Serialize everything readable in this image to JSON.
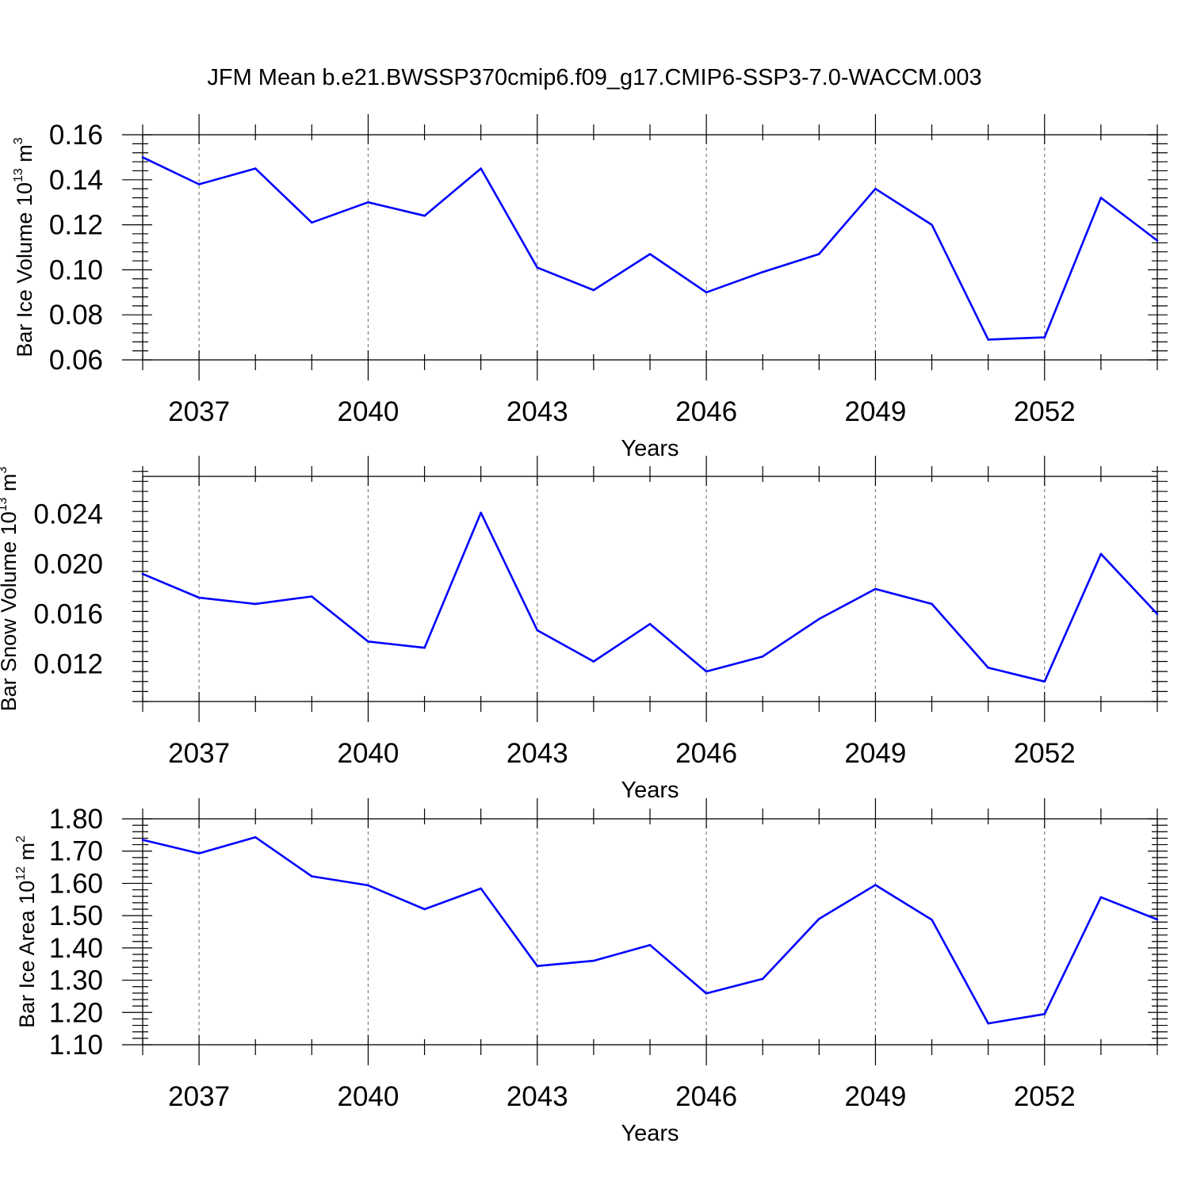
{
  "chart_data": {
    "title": "JFM Mean b.e21.BWSSP370cmip6.f09_g17.CMIP6-SSP3-7.0-WACCM.003",
    "panels": [
      {
        "type": "line",
        "x": [
          2036,
          2037,
          2038,
          2039,
          2040,
          2041,
          2042,
          2043,
          2044,
          2045,
          2046,
          2047,
          2048,
          2049,
          2050,
          2051,
          2052,
          2053,
          2054
        ],
        "xlim": [
          2036,
          2054
        ],
        "xticks": [
          2037,
          2040,
          2043,
          2046,
          2049,
          2052
        ],
        "xlabel": "Years",
        "ylabel": {
          "text": "Bar Ice Volume 10",
          "exp": "13",
          "unit": " m",
          "unit_exp": "3"
        },
        "ylim": [
          0.06,
          0.16
        ],
        "yticks": [
          "0.06",
          "0.08",
          "0.10",
          "0.12",
          "0.14",
          "0.16"
        ],
        "series": [
          {
            "values": [
              0.15,
              0.138,
              0.145,
              0.121,
              0.13,
              0.124,
              0.145,
              0.101,
              0.091,
              0.107,
              0.09,
              0.099,
              0.107,
              0.136,
              0.12,
              0.069,
              0.07,
              0.132,
              0.113
            ]
          }
        ],
        "grid": "vertical-dashed",
        "line_color": "#0000ff"
      },
      {
        "type": "line",
        "x": [
          2036,
          2037,
          2038,
          2039,
          2040,
          2041,
          2042,
          2043,
          2044,
          2045,
          2046,
          2047,
          2048,
          2049,
          2050,
          2051,
          2052,
          2053,
          2054
        ],
        "xlim": [
          2036,
          2054
        ],
        "xticks": [
          2037,
          2040,
          2043,
          2046,
          2049,
          2052
        ],
        "xlabel": "Years",
        "ylabel": {
          "text": "Bar Snow Volume 10",
          "exp": "13",
          "unit": " m",
          "unit_exp": "3"
        },
        "ylim": [
          0.009,
          0.027
        ],
        "yticks": [
          "0.012",
          "0.016",
          "0.020",
          "0.024"
        ],
        "series": [
          {
            "values": [
              0.0192,
              0.0173,
              0.0168,
              0.0174,
              0.0138,
              0.0133,
              0.0241,
              0.0147,
              0.0122,
              0.0152,
              0.0114,
              0.0126,
              0.0156,
              0.018,
              0.0168,
              0.0117,
              0.0106,
              0.0208,
              0.016
            ]
          }
        ],
        "grid": "vertical-dashed",
        "line_color": "#0000ff"
      },
      {
        "type": "line",
        "x": [
          2036,
          2037,
          2038,
          2039,
          2040,
          2041,
          2042,
          2043,
          2044,
          2045,
          2046,
          2047,
          2048,
          2049,
          2050,
          2051,
          2052,
          2053,
          2054
        ],
        "xlim": [
          2036,
          2054
        ],
        "xticks": [
          2037,
          2040,
          2043,
          2046,
          2049,
          2052
        ],
        "xlabel": "Years",
        "ylabel": {
          "text": "Bar Ice Area 10",
          "exp": "12",
          "unit": " m",
          "unit_exp": "2"
        },
        "ylim": [
          1.1,
          1.8
        ],
        "yticks": [
          "1.10",
          "1.20",
          "1.30",
          "1.40",
          "1.50",
          "1.60",
          "1.70",
          "1.80"
        ],
        "series": [
          {
            "values": [
              1.735,
              1.693,
              1.743,
              1.622,
              1.594,
              1.52,
              1.584,
              1.344,
              1.36,
              1.409,
              1.259,
              1.304,
              1.49,
              1.595,
              1.487,
              1.166,
              1.195,
              1.557,
              1.488
            ]
          }
        ],
        "grid": "vertical-dashed",
        "line_color": "#0000ff"
      }
    ]
  }
}
